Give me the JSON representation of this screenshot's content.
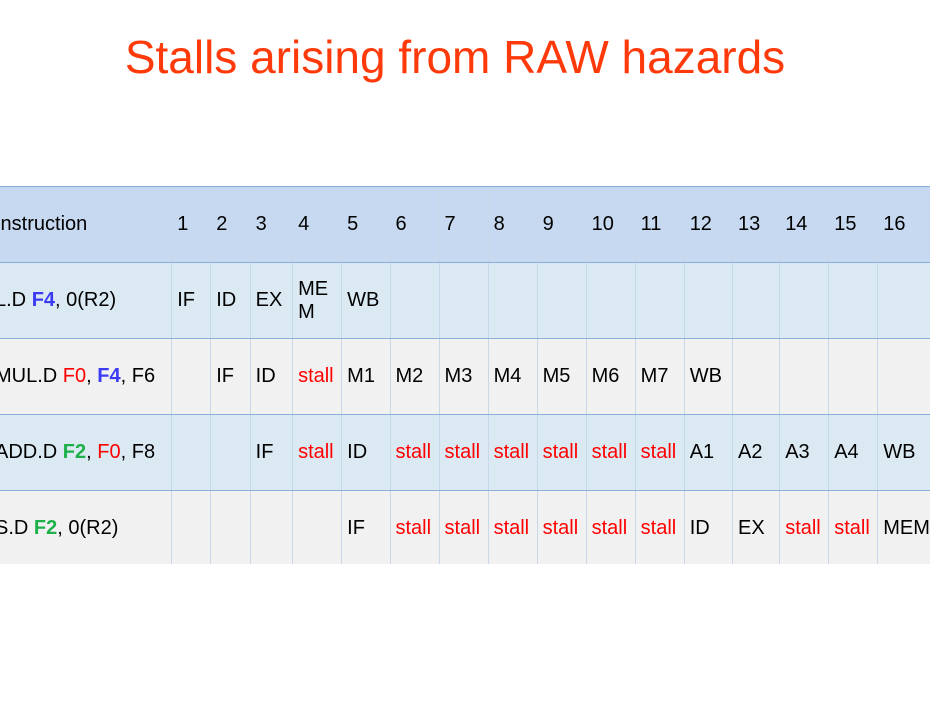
{
  "title": "Stalls arising from RAW hazards",
  "table": {
    "header": {
      "instruction": "Instruction",
      "cycles": [
        "1",
        "2",
        "3",
        "4",
        "5",
        "6",
        "7",
        "8",
        "9",
        "10",
        "11",
        "12",
        "13",
        "14",
        "15",
        "16"
      ]
    },
    "rows": [
      {
        "instr": [
          {
            "text": "L.D ",
            "style": "plain"
          },
          {
            "text": "F4",
            "style": "reg-blue"
          },
          {
            "text": ", 0(R2)",
            "style": "plain"
          }
        ],
        "cells": [
          "IF",
          "ID",
          "EX",
          "MEM",
          "WB",
          "",
          "",
          "",
          "",
          "",
          "",
          "",
          "",
          "",
          "",
          ""
        ]
      },
      {
        "instr": [
          {
            "text": "MUL.D ",
            "style": "plain"
          },
          {
            "text": "F0",
            "style": "reg-red"
          },
          {
            "text": ", ",
            "style": "plain"
          },
          {
            "text": "F4",
            "style": "reg-blue"
          },
          {
            "text": ", F6",
            "style": "plain"
          }
        ],
        "cells": [
          "",
          "IF",
          "ID",
          "stall",
          "M1",
          "M2",
          "M3",
          "M4",
          "M5",
          "M6",
          "M7",
          "WB",
          "",
          "",
          "",
          ""
        ]
      },
      {
        "instr": [
          {
            "text": "ADD.D ",
            "style": "plain"
          },
          {
            "text": "F2",
            "style": "reg-green"
          },
          {
            "text": ", ",
            "style": "plain"
          },
          {
            "text": "F0",
            "style": "reg-red"
          },
          {
            "text": ", F8",
            "style": "plain"
          }
        ],
        "cells": [
          "",
          "",
          "IF",
          "stall",
          "ID",
          "stall",
          "stall",
          "stall",
          "stall",
          "stall",
          "stall",
          "A1",
          "A2",
          "A3",
          "A4",
          "WB"
        ]
      },
      {
        "instr": [
          {
            "text": "S.D ",
            "style": "plain"
          },
          {
            "text": "F2",
            "style": "reg-green"
          },
          {
            "text": ", 0(R2)",
            "style": "plain"
          }
        ],
        "cells": [
          "",
          "",
          "",
          "",
          "IF",
          "stall",
          "stall",
          "stall",
          "stall",
          "stall",
          "stall",
          "ID",
          "EX",
          "stall",
          "stall",
          "MEM"
        ]
      }
    ]
  }
}
